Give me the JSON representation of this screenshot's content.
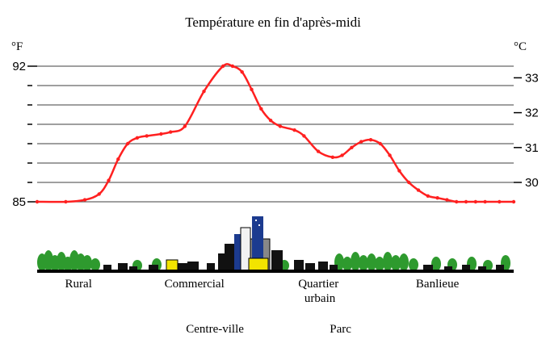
{
  "chart_data": {
    "type": "line",
    "title": "Température en fin d'après-midi",
    "left_axis": {
      "unit": "°F",
      "range": [
        84.5,
        93
      ],
      "labeled_ticks": [
        85,
        92
      ],
      "tick_labels": [
        "85",
        "92"
      ],
      "minor_ticks": [
        86,
        87,
        88,
        89,
        90,
        91
      ]
    },
    "right_axis": {
      "unit": "°C",
      "labeled_ticks": [
        30,
        31,
        32,
        33
      ],
      "tick_labels": [
        "30",
        "31",
        "32",
        "33"
      ]
    },
    "grid": true,
    "series": [
      {
        "color": "#ff2020",
        "x": [
          0,
          6,
          10,
          13,
          15,
          17,
          19,
          21,
          23,
          26,
          28,
          31,
          35,
          39,
          41,
          43,
          45,
          47,
          49,
          51,
          54,
          56,
          59,
          62,
          64,
          66,
          68,
          70,
          72,
          74,
          76,
          78,
          80,
          82,
          84,
          86,
          88,
          90,
          92,
          94,
          97,
          100
        ],
        "values": [
          85.0,
          85.0,
          85.1,
          85.4,
          86.1,
          87.2,
          88.0,
          88.3,
          88.4,
          88.5,
          88.6,
          88.9,
          90.7,
          92.0,
          92.0,
          91.7,
          90.8,
          89.8,
          89.2,
          88.9,
          88.7,
          88.4,
          87.6,
          87.3,
          87.4,
          87.8,
          88.1,
          88.2,
          88.0,
          87.4,
          86.6,
          86.0,
          85.6,
          85.3,
          85.2,
          85.1,
          85.0,
          85.0,
          85.0,
          85.0,
          85.0,
          85.0
        ]
      }
    ],
    "x_zone_labels": [
      {
        "label": "Rural",
        "x": 8
      },
      {
        "label": "Commercial",
        "x": 33
      },
      {
        "label": "Quartier urbain",
        "line1": "Quartier",
        "line2": "urbain",
        "x": 59
      },
      {
        "label": "Banlieue",
        "x": 84
      },
      {
        "label": "Centre-ville",
        "x": 39
      },
      {
        "label": "Parc",
        "x": 64
      }
    ]
  },
  "skyline": {
    "tree_color": "#2e9a2e",
    "building_color": "#111111",
    "tower_color": "#1c3b8f",
    "window_color": "#f2e400"
  }
}
